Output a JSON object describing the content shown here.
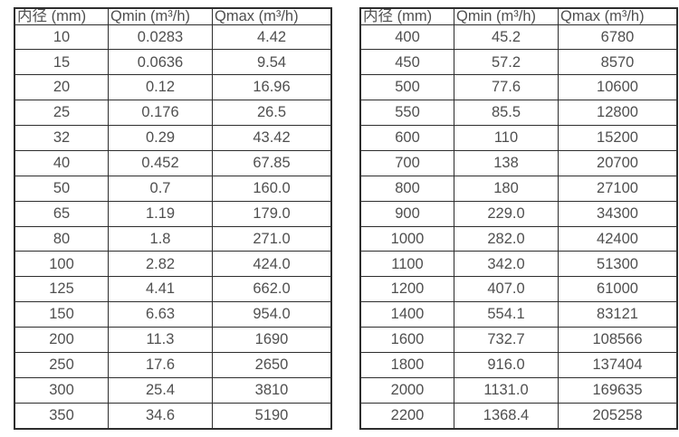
{
  "colors": {
    "background": "#ffffff",
    "border": "#2d2d2d",
    "text": "#4f4f4f"
  },
  "left_table": {
    "headers": [
      "内径 (mm)",
      "Qmin (m³/h)",
      "Qmax (m³/h)"
    ],
    "rows": [
      [
        "10",
        "0.0283",
        "4.42"
      ],
      [
        "15",
        "0.0636",
        "9.54"
      ],
      [
        "20",
        "0.12",
        "16.96"
      ],
      [
        "25",
        "0.176",
        "26.5"
      ],
      [
        "32",
        "0.29",
        "43.42"
      ],
      [
        "40",
        "0.452",
        "67.85"
      ],
      [
        "50",
        "0.7",
        "160.0"
      ],
      [
        "65",
        "1.19",
        "179.0"
      ],
      [
        "80",
        "1.8",
        "271.0"
      ],
      [
        "100",
        "2.82",
        "424.0"
      ],
      [
        "125",
        "4.41",
        "662.0"
      ],
      [
        "150",
        "6.63",
        "954.0"
      ],
      [
        "200",
        "11.3",
        "1690"
      ],
      [
        "250",
        "17.6",
        "2650"
      ],
      [
        "300",
        "25.4",
        "3810"
      ],
      [
        "350",
        "34.6",
        "5190"
      ]
    ]
  },
  "right_table": {
    "headers": [
      "内径 (mm)",
      "Qmin (m³/h)",
      "Qmax (m³/h)"
    ],
    "rows": [
      [
        "400",
        "45.2",
        "6780"
      ],
      [
        "450",
        "57.2",
        "8570"
      ],
      [
        "500",
        "77.6",
        "10600"
      ],
      [
        "550",
        "85.5",
        "12800"
      ],
      [
        "600",
        "110",
        "15200"
      ],
      [
        "700",
        "138",
        "20700"
      ],
      [
        "800",
        "180",
        "27100"
      ],
      [
        "900",
        "229.0",
        "34300"
      ],
      [
        "1000",
        "282.0",
        "42400"
      ],
      [
        "1100",
        "342.0",
        "51300"
      ],
      [
        "1200",
        "407.0",
        "61000"
      ],
      [
        "1400",
        "554.1",
        "83121"
      ],
      [
        "1600",
        "732.7",
        "108566"
      ],
      [
        "1800",
        "916.0",
        "137404"
      ],
      [
        "2000",
        "1131.0",
        "169635"
      ],
      [
        "2200",
        "1368.4",
        "205258"
      ]
    ]
  }
}
